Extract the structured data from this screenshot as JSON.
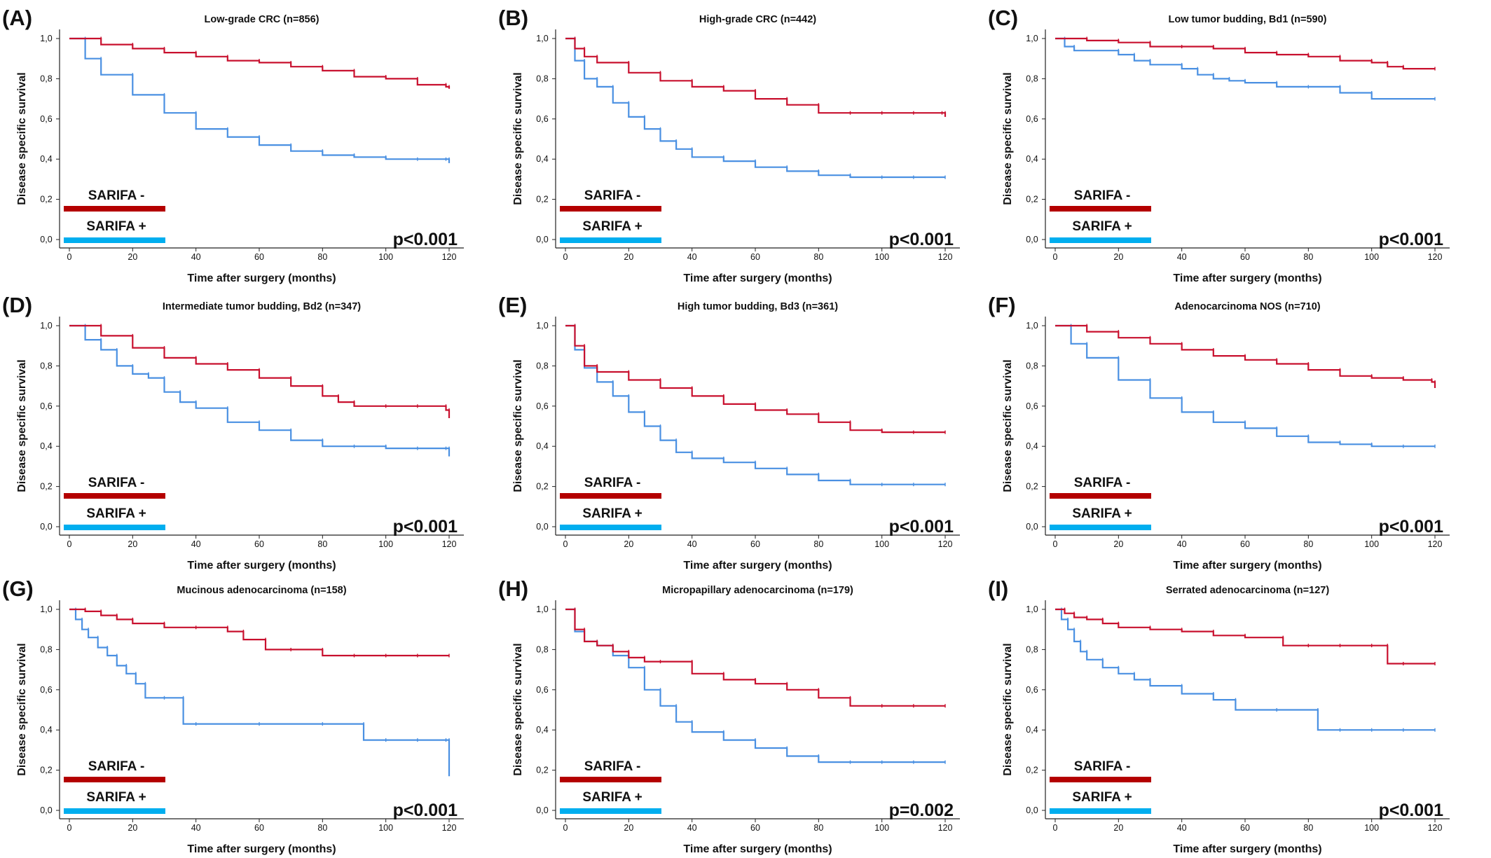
{
  "figure": {
    "colors": {
      "sarifa_negative": "#c8102e",
      "sarifa_positive": "#4a90e2",
      "legend_negative": "#b40000",
      "legend_positive": "#00aeef"
    }
  },
  "chart_data": [
    {
      "type": "line",
      "letter": "(A)",
      "title": "Low-grade CRC (n=856)",
      "xlabel": "Time after surgery (months)",
      "ylabel": "Disease specific survival",
      "xlim": [
        0,
        120
      ],
      "ylim": [
        0,
        1
      ],
      "xticks": [
        "0",
        "20",
        "40",
        "60",
        "80",
        "100",
        "120"
      ],
      "yticks": [
        "0,0",
        "0,2",
        "0,4",
        "0,6",
        "0,8",
        "1,0"
      ],
      "legend": [
        "SARIFA -",
        "SARIFA +"
      ],
      "pvalue": "p<0.001",
      "series": [
        {
          "name": "SARIFA -",
          "x": [
            0,
            10,
            20,
            30,
            40,
            50,
            60,
            70,
            80,
            90,
            100,
            110,
            119,
            120
          ],
          "y": [
            1.0,
            0.97,
            0.95,
            0.93,
            0.91,
            0.89,
            0.88,
            0.86,
            0.84,
            0.81,
            0.8,
            0.77,
            0.76,
            0.75
          ]
        },
        {
          "name": "SARIFA +",
          "x": [
            0,
            5,
            10,
            20,
            30,
            40,
            50,
            60,
            70,
            80,
            90,
            100,
            110,
            119,
            120
          ],
          "y": [
            1.0,
            0.9,
            0.82,
            0.72,
            0.63,
            0.55,
            0.51,
            0.47,
            0.44,
            0.42,
            0.41,
            0.4,
            0.4,
            0.4,
            0.38
          ]
        }
      ]
    },
    {
      "type": "line",
      "letter": "(B)",
      "title": "High-grade CRC (n=442)",
      "xlabel": "Time after surgery (months)",
      "ylabel": "Disease specific survival",
      "xlim": [
        0,
        120
      ],
      "ylim": [
        0,
        1
      ],
      "xticks": [
        "0",
        "20",
        "40",
        "60",
        "80",
        "100",
        "120"
      ],
      "yticks": [
        "0,0",
        "0,2",
        "0,4",
        "0,6",
        "0,8",
        "1,0"
      ],
      "legend": [
        "SARIFA -",
        "SARIFA +"
      ],
      "pvalue": "p<0.001",
      "series": [
        {
          "name": "SARIFA -",
          "x": [
            0,
            3,
            6,
            10,
            20,
            30,
            40,
            50,
            60,
            70,
            80,
            90,
            100,
            110,
            119,
            120
          ],
          "y": [
            1.0,
            0.95,
            0.91,
            0.88,
            0.83,
            0.79,
            0.76,
            0.74,
            0.7,
            0.67,
            0.63,
            0.63,
            0.63,
            0.63,
            0.63,
            0.61
          ]
        },
        {
          "name": "SARIFA +",
          "x": [
            0,
            3,
            6,
            10,
            15,
            20,
            25,
            30,
            35,
            40,
            50,
            60,
            70,
            80,
            90,
            100,
            110,
            120
          ],
          "y": [
            1.0,
            0.89,
            0.8,
            0.76,
            0.68,
            0.61,
            0.55,
            0.49,
            0.45,
            0.41,
            0.39,
            0.36,
            0.34,
            0.32,
            0.31,
            0.31,
            0.31,
            0.31
          ]
        }
      ]
    },
    {
      "type": "line",
      "letter": "(C)",
      "title": "Low tumor budding, Bd1 (n=590)",
      "xlabel": "Time after surgery (months)",
      "ylabel": "Disease specific survival",
      "xlim": [
        0,
        120
      ],
      "ylim": [
        0,
        1
      ],
      "xticks": [
        "0",
        "20",
        "40",
        "60",
        "80",
        "100",
        "120"
      ],
      "yticks": [
        "0,0",
        "0,2",
        "0,4",
        "0,6",
        "0,8",
        "1,0"
      ],
      "legend": [
        "SARIFA -",
        "SARIFA +"
      ],
      "pvalue": "p<0.001",
      "series": [
        {
          "name": "SARIFA -",
          "x": [
            0,
            10,
            20,
            30,
            40,
            50,
            60,
            70,
            80,
            90,
            100,
            105,
            110,
            120
          ],
          "y": [
            1.0,
            0.99,
            0.98,
            0.96,
            0.96,
            0.95,
            0.93,
            0.92,
            0.91,
            0.89,
            0.88,
            0.86,
            0.85,
            0.85
          ]
        },
        {
          "name": "SARIFA +",
          "x": [
            0,
            3,
            6,
            20,
            25,
            30,
            40,
            45,
            50,
            55,
            60,
            70,
            80,
            90,
            100,
            120
          ],
          "y": [
            1.0,
            0.96,
            0.94,
            0.92,
            0.89,
            0.87,
            0.85,
            0.82,
            0.8,
            0.79,
            0.78,
            0.76,
            0.76,
            0.73,
            0.7,
            0.7
          ]
        }
      ]
    },
    {
      "type": "line",
      "letter": "(D)",
      "title": "Intermediate tumor budding, Bd2 (n=347)",
      "xlabel": "Time after surgery (months)",
      "ylabel": "Disease specific survival",
      "xlim": [
        0,
        120
      ],
      "ylim": [
        0,
        1
      ],
      "xticks": [
        "0",
        "20",
        "40",
        "60",
        "80",
        "100",
        "120"
      ],
      "yticks": [
        "0,0",
        "0,2",
        "0,4",
        "0,6",
        "0,8",
        "1,0"
      ],
      "legend": [
        "SARIFA -",
        "SARIFA +"
      ],
      "pvalue": "p<0.001",
      "series": [
        {
          "name": "SARIFA -",
          "x": [
            0,
            10,
            20,
            30,
            40,
            50,
            60,
            70,
            80,
            85,
            90,
            100,
            110,
            119,
            120
          ],
          "y": [
            1.0,
            0.95,
            0.89,
            0.84,
            0.81,
            0.78,
            0.74,
            0.7,
            0.65,
            0.62,
            0.6,
            0.6,
            0.6,
            0.58,
            0.54
          ]
        },
        {
          "name": "SARIFA +",
          "x": [
            0,
            5,
            10,
            15,
            20,
            25,
            30,
            35,
            40,
            50,
            60,
            70,
            80,
            90,
            100,
            110,
            119,
            120
          ],
          "y": [
            1.0,
            0.93,
            0.88,
            0.8,
            0.76,
            0.74,
            0.67,
            0.62,
            0.59,
            0.52,
            0.48,
            0.43,
            0.4,
            0.4,
            0.39,
            0.39,
            0.39,
            0.35
          ]
        }
      ]
    },
    {
      "type": "line",
      "letter": "(E)",
      "title": "High tumor budding, Bd3 (n=361)",
      "xlabel": "Time after surgery (months)",
      "ylabel": "Disease specific survival",
      "xlim": [
        0,
        120
      ],
      "ylim": [
        0,
        1
      ],
      "xticks": [
        "0",
        "20",
        "40",
        "60",
        "80",
        "100",
        "120"
      ],
      "yticks": [
        "0,0",
        "0,2",
        "0,4",
        "0,6",
        "0,8",
        "1,0"
      ],
      "legend": [
        "SARIFA -",
        "SARIFA +"
      ],
      "pvalue": "p<0.001",
      "series": [
        {
          "name": "SARIFA -",
          "x": [
            0,
            3,
            6,
            10,
            20,
            30,
            40,
            50,
            60,
            70,
            80,
            90,
            100,
            110,
            120
          ],
          "y": [
            1.0,
            0.9,
            0.8,
            0.77,
            0.73,
            0.69,
            0.65,
            0.61,
            0.58,
            0.56,
            0.52,
            0.48,
            0.47,
            0.47,
            0.47
          ]
        },
        {
          "name": "SARIFA +",
          "x": [
            0,
            3,
            6,
            10,
            15,
            20,
            25,
            30,
            35,
            40,
            50,
            60,
            70,
            80,
            90,
            100,
            110,
            120
          ],
          "y": [
            1.0,
            0.88,
            0.79,
            0.72,
            0.65,
            0.57,
            0.5,
            0.43,
            0.37,
            0.34,
            0.32,
            0.29,
            0.26,
            0.23,
            0.21,
            0.21,
            0.21,
            0.21
          ]
        }
      ]
    },
    {
      "type": "line",
      "letter": "(F)",
      "title": "Adenocarcinoma NOS (n=710)",
      "xlabel": "Time after surgery (months)",
      "ylabel": "Disease specific survival",
      "xlim": [
        0,
        120
      ],
      "ylim": [
        0,
        1
      ],
      "xticks": [
        "0",
        "20",
        "40",
        "60",
        "80",
        "100",
        "120"
      ],
      "yticks": [
        "0,0",
        "0,2",
        "0,4",
        "0,6",
        "0,8",
        "1,0"
      ],
      "legend": [
        "SARIFA -",
        "SARIFA +"
      ],
      "pvalue": "p<0.001",
      "series": [
        {
          "name": "SARIFA -",
          "x": [
            0,
            10,
            20,
            30,
            40,
            50,
            60,
            70,
            80,
            90,
            100,
            110,
            119,
            120
          ],
          "y": [
            1.0,
            0.97,
            0.94,
            0.91,
            0.88,
            0.85,
            0.83,
            0.81,
            0.78,
            0.75,
            0.74,
            0.73,
            0.72,
            0.69
          ]
        },
        {
          "name": "SARIFA +",
          "x": [
            0,
            5,
            10,
            20,
            30,
            40,
            50,
            60,
            70,
            80,
            90,
            100,
            110,
            120
          ],
          "y": [
            1.0,
            0.91,
            0.84,
            0.73,
            0.64,
            0.57,
            0.52,
            0.49,
            0.45,
            0.42,
            0.41,
            0.4,
            0.4,
            0.4
          ]
        }
      ]
    },
    {
      "type": "line",
      "letter": "(G)",
      "title": "Mucinous adenocarcinoma (n=158)",
      "xlabel": "Time after surgery (months)",
      "ylabel": "Disease specific survival",
      "xlim": [
        0,
        120
      ],
      "ylim": [
        0,
        1
      ],
      "xticks": [
        "0",
        "20",
        "40",
        "60",
        "80",
        "100",
        "120"
      ],
      "yticks": [
        "0,0",
        "0,2",
        "0,4",
        "0,6",
        "0,8",
        "1,0"
      ],
      "legend": [
        "SARIFA -",
        "SARIFA +"
      ],
      "pvalue": "p<0.001",
      "series": [
        {
          "name": "SARIFA -",
          "x": [
            0,
            5,
            10,
            15,
            20,
            30,
            40,
            50,
            55,
            62,
            70,
            80,
            90,
            100,
            110,
            120
          ],
          "y": [
            1.0,
            0.99,
            0.97,
            0.95,
            0.93,
            0.91,
            0.91,
            0.89,
            0.85,
            0.8,
            0.8,
            0.77,
            0.77,
            0.77,
            0.77,
            0.77
          ]
        },
        {
          "name": "SARIFA +",
          "x": [
            0,
            2,
            4,
            6,
            9,
            12,
            15,
            18,
            21,
            24,
            30,
            36,
            40,
            60,
            80,
            93,
            100,
            110,
            119,
            120
          ],
          "y": [
            1.0,
            0.95,
            0.9,
            0.86,
            0.81,
            0.77,
            0.72,
            0.68,
            0.63,
            0.56,
            0.56,
            0.43,
            0.43,
            0.43,
            0.43,
            0.35,
            0.35,
            0.35,
            0.35,
            0.17
          ]
        }
      ]
    },
    {
      "type": "line",
      "letter": "(H)",
      "title": "Micropapillary adenocarcinoma (n=179)",
      "xlabel": "Time after surgery (months)",
      "ylabel": "Disease specific survival",
      "xlim": [
        0,
        120
      ],
      "ylim": [
        0,
        1
      ],
      "xticks": [
        "0",
        "20",
        "40",
        "60",
        "80",
        "100",
        "120"
      ],
      "yticks": [
        "0,0",
        "0,2",
        "0,4",
        "0,6",
        "0,8",
        "1,0"
      ],
      "legend": [
        "SARIFA -",
        "SARIFA +"
      ],
      "pvalue": "p=0.002",
      "series": [
        {
          "name": "SARIFA -",
          "x": [
            0,
            3,
            6,
            10,
            15,
            20,
            25,
            30,
            40,
            50,
            60,
            70,
            80,
            90,
            100,
            110,
            120
          ],
          "y": [
            1.0,
            0.9,
            0.84,
            0.82,
            0.79,
            0.76,
            0.74,
            0.74,
            0.68,
            0.65,
            0.63,
            0.6,
            0.56,
            0.52,
            0.52,
            0.52,
            0.52
          ]
        },
        {
          "name": "SARIFA +",
          "x": [
            0,
            3,
            6,
            10,
            15,
            20,
            25,
            30,
            35,
            40,
            50,
            60,
            70,
            80,
            90,
            100,
            110,
            120
          ],
          "y": [
            1.0,
            0.89,
            0.84,
            0.82,
            0.77,
            0.71,
            0.6,
            0.52,
            0.44,
            0.39,
            0.35,
            0.31,
            0.27,
            0.24,
            0.24,
            0.24,
            0.24,
            0.24
          ]
        }
      ]
    },
    {
      "type": "line",
      "letter": "(I)",
      "title": "Serrated adenocarcinoma (n=127)",
      "xlabel": "Time after surgery (months)",
      "ylabel": "Disease specific survival",
      "xlim": [
        0,
        120
      ],
      "ylim": [
        0,
        1
      ],
      "xticks": [
        "0",
        "20",
        "40",
        "60",
        "80",
        "100",
        "120"
      ],
      "yticks": [
        "0,0",
        "0,2",
        "0,4",
        "0,6",
        "0,8",
        "1,0"
      ],
      "legend": [
        "SARIFA -",
        "SARIFA +"
      ],
      "pvalue": "p<0.001",
      "series": [
        {
          "name": "SARIFA -",
          "x": [
            0,
            3,
            6,
            10,
            15,
            20,
            30,
            40,
            50,
            60,
            72,
            80,
            90,
            100,
            105,
            110,
            120
          ],
          "y": [
            1.0,
            0.98,
            0.96,
            0.95,
            0.93,
            0.91,
            0.9,
            0.89,
            0.87,
            0.86,
            0.82,
            0.82,
            0.82,
            0.82,
            0.73,
            0.73,
            0.73
          ]
        },
        {
          "name": "SARIFA +",
          "x": [
            0,
            2,
            4,
            6,
            8,
            10,
            15,
            20,
            25,
            30,
            40,
            50,
            57,
            70,
            83,
            90,
            100,
            110,
            120
          ],
          "y": [
            1.0,
            0.95,
            0.9,
            0.84,
            0.79,
            0.75,
            0.71,
            0.68,
            0.65,
            0.62,
            0.58,
            0.55,
            0.5,
            0.5,
            0.4,
            0.4,
            0.4,
            0.4,
            0.4
          ]
        }
      ]
    }
  ]
}
